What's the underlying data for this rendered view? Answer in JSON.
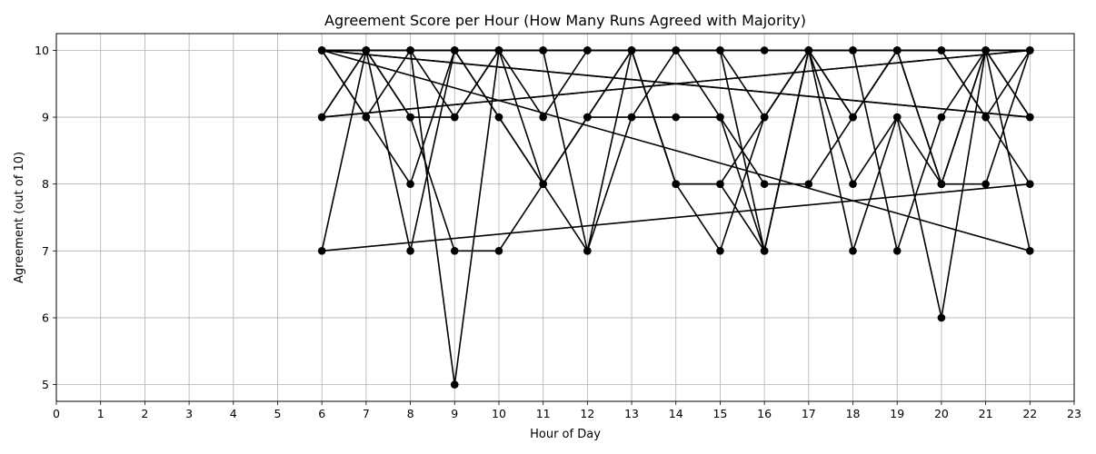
{
  "chart_data": {
    "type": "line",
    "title": "Agreement Score per Hour (How Many Runs Agreed with Majority)",
    "xlabel": "Hour of Day",
    "ylabel": "Agreement (out of 10)",
    "xlim": [
      0,
      23
    ],
    "ylim": [
      4.75,
      10.25
    ],
    "xticks": [
      0,
      1,
      2,
      3,
      4,
      5,
      6,
      7,
      8,
      9,
      10,
      11,
      12,
      13,
      14,
      15,
      16,
      17,
      18,
      19,
      20,
      21,
      22,
      23
    ],
    "yticks": [
      5,
      6,
      7,
      8,
      9,
      10
    ],
    "grid": true,
    "legend": "none",
    "colors": {
      "line": "#000000",
      "marker": "#000000",
      "grid": "#b0b0b0",
      "background": "#ffffff"
    },
    "series": [
      {
        "x": [
          6,
          7,
          8,
          9,
          10,
          11,
          12,
          13,
          14,
          15,
          16,
          17,
          18,
          19,
          20,
          21,
          22
        ],
        "y": [
          10,
          10,
          10,
          10,
          10,
          10,
          10,
          10,
          10,
          10,
          10,
          10,
          10,
          10,
          10,
          10,
          10
        ]
      },
      {
        "x": [
          6,
          7,
          8,
          9,
          10,
          11,
          12,
          13,
          14,
          15,
          16,
          17,
          18,
          19,
          20,
          21,
          22
        ],
        "y": [
          9,
          10,
          9,
          9,
          10,
          8,
          9,
          10,
          8,
          8,
          9,
          10,
          9,
          10,
          8,
          10,
          9
        ]
      },
      {
        "x": [
          6,
          7,
          8,
          9,
          10,
          11,
          12,
          13,
          14,
          15,
          16,
          17,
          18,
          19,
          20,
          21,
          22
        ],
        "y": [
          10,
          9,
          8,
          10,
          9,
          8,
          7,
          10,
          10,
          9,
          7,
          10,
          7,
          9,
          8,
          10,
          10
        ]
      },
      {
        "x": [
          6,
          7,
          8,
          9,
          10,
          11,
          12,
          13,
          14,
          15,
          16,
          17,
          18,
          19,
          20,
          21,
          22
        ],
        "y": [
          9,
          10,
          7,
          10,
          10,
          9,
          10,
          10,
          8,
          7,
          9,
          10,
          10,
          10,
          8,
          8,
          10
        ]
      },
      {
        "x": [
          6,
          7,
          8,
          9,
          10,
          11,
          12,
          13,
          14,
          15,
          16,
          17,
          18,
          19,
          20,
          21,
          22
        ],
        "y": [
          10,
          9,
          10,
          5,
          10,
          10,
          7,
          9,
          9,
          9,
          8,
          8,
          9,
          10,
          10,
          9,
          8
        ]
      },
      {
        "x": [
          6,
          7,
          8,
          9,
          10,
          11,
          12,
          13,
          14,
          15,
          16,
          17,
          18,
          19,
          20,
          21,
          22
        ],
        "y": [
          7,
          10,
          9,
          7,
          7,
          8,
          9,
          9,
          10,
          10,
          7,
          10,
          8,
          9,
          6,
          10,
          9
        ]
      },
      {
        "x": [
          6,
          7,
          8,
          9,
          10,
          11,
          12,
          13,
          14,
          15,
          16,
          17,
          18,
          19,
          20,
          21,
          22
        ],
        "y": [
          10,
          10,
          10,
          9,
          10,
          10,
          10,
          10,
          10,
          10,
          9,
          10,
          10,
          7,
          9,
          10,
          7
        ]
      },
      {
        "x": [
          6,
          7,
          8,
          9,
          10,
          11,
          12,
          13,
          14,
          15,
          16,
          17,
          18,
          19,
          20,
          21,
          22
        ],
        "y": [
          10,
          10,
          10,
          10,
          9,
          8,
          9,
          10,
          8,
          8,
          7,
          10,
          9,
          10,
          10,
          9,
          10
        ]
      }
    ],
    "wrap_segments": [
      {
        "x": [
          22,
          6
        ],
        "y": [
          10,
          9
        ]
      },
      {
        "x": [
          22,
          6
        ],
        "y": [
          9,
          10
        ]
      },
      {
        "x": [
          22,
          6
        ],
        "y": [
          10,
          9
        ]
      },
      {
        "x": [
          22,
          6
        ],
        "y": [
          10,
          10
        ]
      },
      {
        "x": [
          22,
          6
        ],
        "y": [
          8,
          7
        ]
      },
      {
        "x": [
          22,
          6
        ],
        "y": [
          9,
          10
        ]
      },
      {
        "x": [
          22,
          6
        ],
        "y": [
          7,
          10
        ]
      }
    ]
  }
}
